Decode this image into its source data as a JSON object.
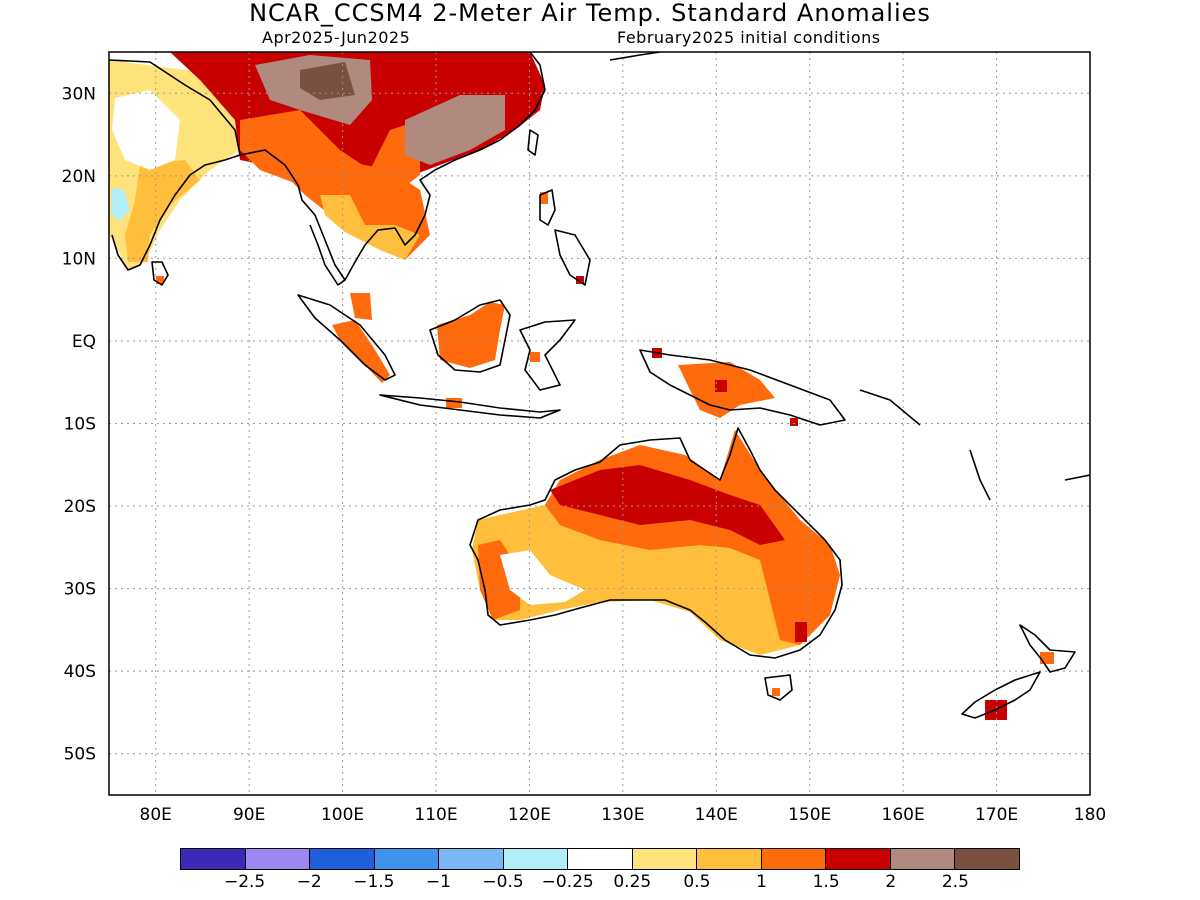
{
  "title": "NCAR_CCSM4 2-Meter Air Temp. Standard Anomalies",
  "subtitle_left": "Apr2025-Jun2025",
  "subtitle_right": "February2025 initial conditions",
  "axes": {
    "lon_range": [
      75,
      180
    ],
    "lat_range": [
      -55,
      35
    ],
    "lon_ticks": [
      "80E",
      "90E",
      "100E",
      "110E",
      "120E",
      "130E",
      "140E",
      "150E",
      "160E",
      "170E",
      "180"
    ],
    "lat_ticks": [
      "30N",
      "20N",
      "10N",
      "EQ",
      "10S",
      "20S",
      "30S",
      "40S",
      "50S"
    ]
  },
  "colorbar": {
    "colors": [
      "#3b2ab8",
      "#9f87f2",
      "#1f5fdc",
      "#3f92ee",
      "#78b8f4",
      "#b0eef8",
      "#ffffff",
      "#ffe27a",
      "#ffbe3c",
      "#ff6a0c",
      "#c80000",
      "#b08a7e",
      "#7a5040"
    ],
    "labels": [
      "-2.5",
      "-2",
      "-1.5",
      "-1",
      "-0.5",
      "-0.25",
      "0.25",
      "0.5",
      "1",
      "1.5",
      "2",
      "2.5"
    ]
  },
  "anomaly_regions": [
    {
      "level": "2",
      "region": "Tibet / southern China"
    },
    {
      "level": "2.5",
      "region": "Tibetan Plateau"
    },
    {
      "level": "1.5",
      "region": "Indochina"
    },
    {
      "level": "0.5",
      "region": "India"
    },
    {
      "level": "-0.25",
      "region": "western India"
    },
    {
      "level": "1.5",
      "region": "Borneo"
    },
    {
      "level": "1.5",
      "region": "Sumatra"
    },
    {
      "level": "1.5",
      "region": "New Guinea"
    },
    {
      "level": "2",
      "region": "northern Australia"
    },
    {
      "level": "1.5",
      "region": "eastern Australia"
    },
    {
      "level": "1",
      "region": "central / southern Australia"
    },
    {
      "level": "0.25",
      "region": "southwest Australia"
    },
    {
      "level": "2",
      "region": "New Zealand"
    }
  ]
}
